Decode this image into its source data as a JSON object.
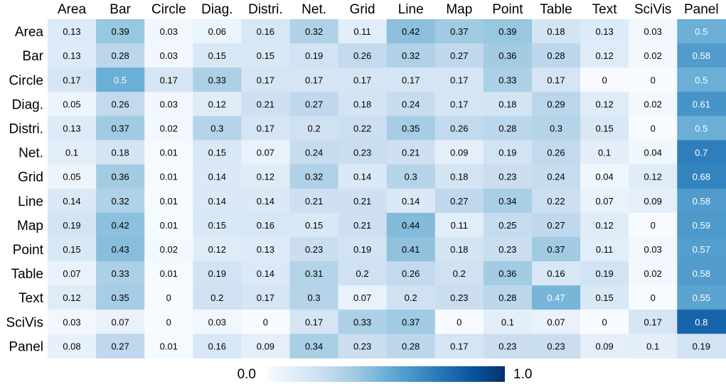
{
  "chart_data": {
    "type": "heatmap",
    "columns": [
      "Area",
      "Bar",
      "Circle",
      "Diag.",
      "Distri.",
      "Net.",
      "Grid",
      "Line",
      "Map",
      "Point",
      "Table",
      "Text",
      "SciVis",
      "Panel"
    ],
    "rows": [
      "Area",
      "Bar",
      "Circle",
      "Diag.",
      "Distri.",
      "Net.",
      "Grid",
      "Line",
      "Map",
      "Point",
      "Table",
      "Text",
      "SciVis",
      "Panel"
    ],
    "values": [
      [
        0.13,
        0.39,
        0.03,
        0.06,
        0.16,
        0.32,
        0.11,
        0.42,
        0.37,
        0.39,
        0.18,
        0.13,
        0.03,
        0.5
      ],
      [
        0.13,
        0.28,
        0.03,
        0.15,
        0.15,
        0.19,
        0.26,
        0.32,
        0.27,
        0.36,
        0.28,
        0.12,
        0.02,
        0.58
      ],
      [
        0.17,
        0.5,
        0.17,
        0.33,
        0.17,
        0.17,
        0.17,
        0.17,
        0.17,
        0.33,
        0.17,
        0,
        0,
        0.5
      ],
      [
        0.05,
        0.26,
        0.03,
        0.12,
        0.21,
        0.27,
        0.18,
        0.24,
        0.17,
        0.18,
        0.29,
        0.12,
        0.02,
        0.61
      ],
      [
        0.13,
        0.37,
        0.02,
        0.3,
        0.17,
        0.2,
        0.22,
        0.35,
        0.26,
        0.28,
        0.3,
        0.15,
        0,
        0.5
      ],
      [
        0.1,
        0.18,
        0.01,
        0.15,
        0.07,
        0.24,
        0.23,
        0.21,
        0.09,
        0.19,
        0.26,
        0.1,
        0.04,
        0.7
      ],
      [
        0.05,
        0.36,
        0.01,
        0.14,
        0.12,
        0.32,
        0.14,
        0.3,
        0.18,
        0.23,
        0.24,
        0.04,
        0.12,
        0.68
      ],
      [
        0.14,
        0.32,
        0.01,
        0.14,
        0.14,
        0.21,
        0.21,
        0.14,
        0.27,
        0.34,
        0.22,
        0.07,
        0.09,
        0.58
      ],
      [
        0.19,
        0.42,
        0.01,
        0.15,
        0.16,
        0.15,
        0.21,
        0.44,
        0.11,
        0.25,
        0.27,
        0.12,
        0,
        0.59
      ],
      [
        0.15,
        0.43,
        0.02,
        0.12,
        0.13,
        0.23,
        0.19,
        0.41,
        0.18,
        0.23,
        0.37,
        0.11,
        0.03,
        0.57
      ],
      [
        0.07,
        0.33,
        0.01,
        0.19,
        0.14,
        0.31,
        0.2,
        0.26,
        0.2,
        0.36,
        0.16,
        0.19,
        0.02,
        0.58
      ],
      [
        0.12,
        0.35,
        0,
        0.2,
        0.17,
        0.3,
        0.07,
        0.2,
        0.23,
        0.28,
        0.47,
        0.15,
        0,
        0.55
      ],
      [
        0.03,
        0.07,
        0,
        0.03,
        0,
        0.17,
        0.33,
        0.37,
        0,
        0.1,
        0.07,
        0,
        0.17,
        0.8
      ],
      [
        0.08,
        0.27,
        0.01,
        0.16,
        0.09,
        0.34,
        0.23,
        0.28,
        0.17,
        0.23,
        0.23,
        0.09,
        0.1,
        0.19
      ]
    ],
    "colorbar": {
      "min_label": "0.0",
      "max_label": "1.0",
      "range": [
        0,
        1
      ]
    },
    "colormap": [
      "#f7fbff",
      "#08306b"
    ],
    "text_color_light": "#ffffff",
    "text_color_dark": "#000000"
  }
}
